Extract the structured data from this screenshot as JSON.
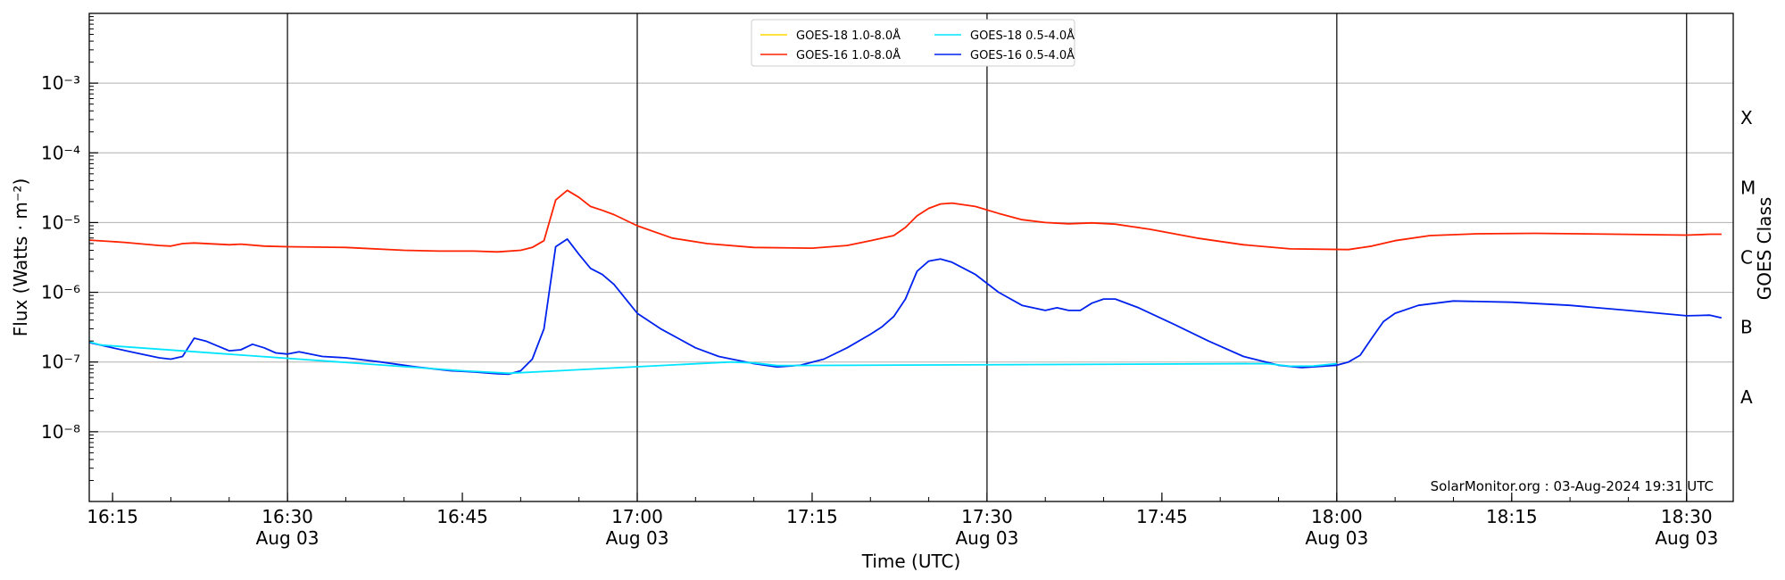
{
  "chart_data": {
    "type": "line",
    "xlabel": "Time (UTC)",
    "ylabel": "Flux (Watts · m⁻²)",
    "y2label": "GOES Class",
    "credit": "SolarMonitor.org : 03-Aug-2024 19:31 UTC",
    "yscale": "log",
    "ylim": [
      1e-09,
      0.01
    ],
    "xlim": [
      "16:13",
      "18:34"
    ],
    "grid": "horizontal",
    "legend_position": "top-center",
    "x_ticks": [
      {
        "time": "16:15",
        "label": "16:15",
        "sublabel": ""
      },
      {
        "time": "16:30",
        "label": "16:30",
        "sublabel": "Aug 03"
      },
      {
        "time": "16:45",
        "label": "16:45",
        "sublabel": ""
      },
      {
        "time": "17:00",
        "label": "17:00",
        "sublabel": "Aug 03"
      },
      {
        "time": "17:15",
        "label": "17:15",
        "sublabel": ""
      },
      {
        "time": "17:30",
        "label": "17:30",
        "sublabel": "Aug 03"
      },
      {
        "time": "17:45",
        "label": "17:45",
        "sublabel": ""
      },
      {
        "time": "18:00",
        "label": "18:00",
        "sublabel": "Aug 03"
      },
      {
        "time": "18:15",
        "label": "18:15",
        "sublabel": ""
      },
      {
        "time": "18:30",
        "label": "18:30",
        "sublabel": "Aug 03"
      }
    ],
    "y_ticks": [
      {
        "exp": -8,
        "label": "10⁻⁸"
      },
      {
        "exp": -7,
        "label": "10⁻⁷"
      },
      {
        "exp": -6,
        "label": "10⁻⁶"
      },
      {
        "exp": -5,
        "label": "10⁻⁵"
      },
      {
        "exp": -4,
        "label": "10⁻⁴"
      },
      {
        "exp": -3,
        "label": "10⁻³"
      }
    ],
    "goes_classes": [
      {
        "label": "A",
        "exp": -7.5
      },
      {
        "label": "B",
        "exp": -6.5
      },
      {
        "label": "C",
        "exp": -5.5
      },
      {
        "label": "M",
        "exp": -4.5
      },
      {
        "label": "X",
        "exp": -3.5
      }
    ],
    "vertical_lines": [
      "16:30",
      "17:00",
      "17:30",
      "18:00",
      "18:30"
    ],
    "legend": [
      {
        "name": "GOES-18 1.0-8.0Å",
        "color": "#ffd700"
      },
      {
        "name": "GOES-16 1.0-8.0Å",
        "color": "#ff2200"
      },
      {
        "name": "GOES-18 0.5-4.0Å",
        "color": "#00e5ff"
      },
      {
        "name": "GOES-16 0.5-4.0Å",
        "color": "#0022ee"
      }
    ],
    "series": [
      {
        "name": "GOES-16 1.0-8.0Å",
        "color": "#ff2200",
        "points": [
          [
            "16:13",
            5.6e-06
          ],
          [
            "16:16",
            5.2e-06
          ],
          [
            "16:19",
            4.7e-06
          ],
          [
            "16:20",
            4.6e-06
          ],
          [
            "16:21",
            5e-06
          ],
          [
            "16:22",
            5.1e-06
          ],
          [
            "16:25",
            4.8e-06
          ],
          [
            "16:26",
            4.9e-06
          ],
          [
            "16:28",
            4.6e-06
          ],
          [
            "16:30",
            4.5e-06
          ],
          [
            "16:35",
            4.4e-06
          ],
          [
            "16:40",
            4e-06
          ],
          [
            "16:43",
            3.9e-06
          ],
          [
            "16:46",
            3.9e-06
          ],
          [
            "16:48",
            3.8e-06
          ],
          [
            "16:50",
            4e-06
          ],
          [
            "16:51",
            4.4e-06
          ],
          [
            "16:52",
            5.5e-06
          ],
          [
            "16:53",
            2.1e-05
          ],
          [
            "16:54",
            2.9e-05
          ],
          [
            "16:55",
            2.3e-05
          ],
          [
            "16:56",
            1.7e-05
          ],
          [
            "16:57",
            1.5e-05
          ],
          [
            "16:58",
            1.3e-05
          ],
          [
            "17:00",
            9e-06
          ],
          [
            "17:03",
            6e-06
          ],
          [
            "17:06",
            5e-06
          ],
          [
            "17:10",
            4.4e-06
          ],
          [
            "17:15",
            4.3e-06
          ],
          [
            "17:18",
            4.7e-06
          ],
          [
            "17:20",
            5.5e-06
          ],
          [
            "17:22",
            6.5e-06
          ],
          [
            "17:23",
            8.5e-06
          ],
          [
            "17:24",
            1.25e-05
          ],
          [
            "17:25",
            1.6e-05
          ],
          [
            "17:26",
            1.85e-05
          ],
          [
            "17:27",
            1.9e-05
          ],
          [
            "17:29",
            1.7e-05
          ],
          [
            "17:31",
            1.35e-05
          ],
          [
            "17:33",
            1.1e-05
          ],
          [
            "17:35",
            1e-05
          ],
          [
            "17:37",
            9.6e-06
          ],
          [
            "17:39",
            9.9e-06
          ],
          [
            "17:41",
            9.5e-06
          ],
          [
            "17:44",
            8e-06
          ],
          [
            "17:48",
            6e-06
          ],
          [
            "17:52",
            4.8e-06
          ],
          [
            "17:56",
            4.2e-06
          ],
          [
            "18:01",
            4.1e-06
          ],
          [
            "18:03",
            4.6e-06
          ],
          [
            "18:05",
            5.5e-06
          ],
          [
            "18:08",
            6.5e-06
          ],
          [
            "18:12",
            6.9e-06
          ],
          [
            "18:17",
            7e-06
          ],
          [
            "18:24",
            6.8e-06
          ],
          [
            "18:30",
            6.6e-06
          ],
          [
            "18:32",
            6.8e-06
          ],
          [
            "18:33",
            6.8e-06
          ]
        ]
      },
      {
        "name": "GOES-16 0.5-4.0Å",
        "color": "#0022ee",
        "points": [
          [
            "16:13",
            1.9e-07
          ],
          [
            "16:15",
            1.6e-07
          ],
          [
            "16:17",
            1.35e-07
          ],
          [
            "16:19",
            1.15e-07
          ],
          [
            "16:20",
            1.1e-07
          ],
          [
            "16:21",
            1.2e-07
          ],
          [
            "16:22",
            2.2e-07
          ],
          [
            "16:23",
            2e-07
          ],
          [
            "16:24",
            1.7e-07
          ],
          [
            "16:25",
            1.45e-07
          ],
          [
            "16:26",
            1.5e-07
          ],
          [
            "16:27",
            1.8e-07
          ],
          [
            "16:28",
            1.6e-07
          ],
          [
            "16:29",
            1.35e-07
          ],
          [
            "16:30",
            1.3e-07
          ],
          [
            "16:31",
            1.4e-07
          ],
          [
            "16:33",
            1.2e-07
          ],
          [
            "16:35",
            1.15e-07
          ],
          [
            "16:38",
            1e-07
          ],
          [
            "16:41",
            8.5e-08
          ],
          [
            "16:44",
            7.5e-08
          ],
          [
            "16:46",
            7.2e-08
          ],
          [
            "16:48",
            6.8e-08
          ],
          [
            "16:49",
            6.7e-08
          ],
          [
            "16:50",
            7.5e-08
          ],
          [
            "16:51",
            1.1e-07
          ],
          [
            "16:52",
            3e-07
          ],
          [
            "16:53",
            4.5e-06
          ],
          [
            "16:54",
            5.8e-06
          ],
          [
            "16:55",
            3.5e-06
          ],
          [
            "16:56",
            2.2e-06
          ],
          [
            "16:57",
            1.8e-06
          ],
          [
            "16:58",
            1.3e-06
          ],
          [
            "17:00",
            5e-07
          ],
          [
            "17:02",
            3e-07
          ],
          [
            "17:05",
            1.6e-07
          ],
          [
            "17:07",
            1.2e-07
          ],
          [
            "17:10",
            9.5e-08
          ],
          [
            "17:12",
            8.5e-08
          ],
          [
            "17:14",
            9e-08
          ],
          [
            "17:16",
            1.1e-07
          ],
          [
            "17:18",
            1.6e-07
          ],
          [
            "17:20",
            2.5e-07
          ],
          [
            "17:21",
            3.2e-07
          ],
          [
            "17:22",
            4.5e-07
          ],
          [
            "17:23",
            8e-07
          ],
          [
            "17:24",
            2e-06
          ],
          [
            "17:25",
            2.8e-06
          ],
          [
            "17:26",
            3e-06
          ],
          [
            "17:27",
            2.7e-06
          ],
          [
            "17:29",
            1.8e-06
          ],
          [
            "17:31",
            1e-06
          ],
          [
            "17:33",
            6.5e-07
          ],
          [
            "17:35",
            5.5e-07
          ],
          [
            "17:36",
            6e-07
          ],
          [
            "17:37",
            5.5e-07
          ],
          [
            "17:38",
            5.5e-07
          ],
          [
            "17:39",
            7e-07
          ],
          [
            "17:40",
            8e-07
          ],
          [
            "17:41",
            8e-07
          ],
          [
            "17:43",
            6e-07
          ],
          [
            "17:46",
            3.5e-07
          ],
          [
            "17:49",
            2e-07
          ],
          [
            "17:52",
            1.2e-07
          ],
          [
            "17:55",
            9e-08
          ],
          [
            "17:57",
            8.3e-08
          ],
          [
            "18:00",
            9e-08
          ],
          [
            "18:01",
            1e-07
          ],
          [
            "18:02",
            1.25e-07
          ],
          [
            "18:03",
            2.2e-07
          ],
          [
            "18:04",
            3.8e-07
          ],
          [
            "18:05",
            5e-07
          ],
          [
            "18:07",
            6.5e-07
          ],
          [
            "18:10",
            7.5e-07
          ],
          [
            "18:15",
            7.2e-07
          ],
          [
            "18:20",
            6.5e-07
          ],
          [
            "18:25",
            5.5e-07
          ],
          [
            "18:30",
            4.6e-07
          ],
          [
            "18:32",
            4.7e-07
          ],
          [
            "18:33",
            4.3e-07
          ]
        ]
      },
      {
        "name": "GOES-18 0.5-4.0Å",
        "color": "#00e5ff",
        "points": [
          [
            "16:13",
            1.95e-07
          ],
          [
            "16:14",
            1.75e-07
          ],
          [
            "16:45",
            7.5e-08
          ],
          [
            "16:47",
            7.2e-08
          ],
          [
            "16:49",
            6.9e-08
          ],
          [
            "17:08",
            1e-07
          ],
          [
            "17:10",
            9.7e-08
          ],
          [
            "17:12",
            8.9e-08
          ],
          [
            "17:54",
            9.5e-08
          ],
          [
            "17:56",
            8.7e-08
          ],
          [
            "17:58",
            8.8e-08
          ],
          [
            "18:00",
            9.5e-08
          ]
        ]
      },
      {
        "name": "GOES-18 1.0-8.0Å",
        "color": "#ffd700",
        "points": []
      }
    ]
  }
}
